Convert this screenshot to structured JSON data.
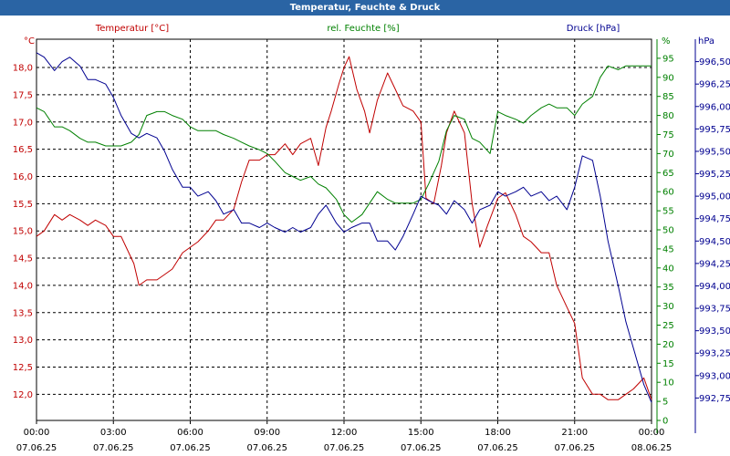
{
  "window": {
    "title": "Temperatur, Feuchte & Druck"
  },
  "colors": {
    "temperature": "#c00000",
    "humidity": "#008000",
    "pressure": "#000090",
    "grid": "#000000",
    "titlebar": "#2a64a4"
  },
  "chart_data": {
    "type": "line",
    "title": "Temperatur, Feuchte & Druck",
    "x_range_hours": [
      0,
      24
    ],
    "x_ticks": [
      {
        "h": 0,
        "time": "00:00",
        "date": "07.06.25"
      },
      {
        "h": 3,
        "time": "03:00",
        "date": "07.06.25"
      },
      {
        "h": 6,
        "time": "06:00",
        "date": "07.06.25"
      },
      {
        "h": 9,
        "time": "09:00",
        "date": "07.06.25"
      },
      {
        "h": 12,
        "time": "12:00",
        "date": "07.06.25"
      },
      {
        "h": 15,
        "time": "15:00",
        "date": "07.06.25"
      },
      {
        "h": 18,
        "time": "18:00",
        "date": "07.06.25"
      },
      {
        "h": 21,
        "time": "21:00",
        "date": "07.06.25"
      },
      {
        "h": 24,
        "time": "00:00",
        "date": "08.06.25"
      }
    ],
    "axes": {
      "temperature": {
        "label": "Temperatur [°C]",
        "unit": "°C",
        "ylim": [
          11.52,
          18.52
        ],
        "ticks": [
          "18,0",
          "17,5",
          "17,0",
          "16,5",
          "16,0",
          "15,5",
          "15,0",
          "14,5",
          "14,0",
          "13,5",
          "13,0",
          "12,5",
          "12,0"
        ]
      },
      "humidity": {
        "label": "rel. Feuchte [%]",
        "unit": "%",
        "ylim": [
          0,
          100
        ],
        "ticks": [
          "95",
          "90",
          "85",
          "80",
          "75",
          "70",
          "65",
          "60",
          "55",
          "50",
          "45",
          "40",
          "35",
          "30",
          "25",
          "20",
          "15",
          "10",
          "5",
          "0"
        ]
      },
      "pressure": {
        "label": "Druck [hPa]",
        "unit": "hPa",
        "ylim": [
          992.5,
          996.75
        ],
        "ticks": [
          "996,50",
          "996,25",
          "996,00",
          "995,75",
          "995,50",
          "995,25",
          "995,00",
          "994,75",
          "994,50",
          "994,25",
          "994,00",
          "993,75",
          "993,50",
          "993,25",
          "993,00",
          "992,75"
        ]
      }
    },
    "series": [
      {
        "name": "Temperatur",
        "axis": "temperature",
        "x": [
          0,
          0.3,
          0.7,
          1.0,
          1.3,
          1.7,
          2.0,
          2.3,
          2.7,
          3.0,
          3.3,
          3.5,
          3.8,
          4.0,
          4.3,
          4.7,
          5.0,
          5.3,
          5.7,
          6.0,
          6.3,
          6.7,
          7.0,
          7.3,
          7.7,
          8.0,
          8.3,
          8.7,
          9.0,
          9.3,
          9.7,
          10.0,
          10.3,
          10.7,
          11.0,
          11.3,
          11.5,
          11.8,
          12.0,
          12.2,
          12.5,
          12.8,
          13.0,
          13.3,
          13.7,
          14.0,
          14.3,
          14.7,
          15.0,
          15.2,
          15.5,
          15.8,
          16.0,
          16.3,
          16.7,
          17.0,
          17.3,
          17.6,
          18.0,
          18.3,
          18.7,
          19.0,
          19.3,
          19.7,
          20.0,
          20.3,
          20.7,
          21.0,
          21.3,
          21.7,
          22.0,
          22.3,
          22.7,
          23.0,
          23.3,
          23.7,
          24.0
        ],
        "values": [
          14.9,
          15.0,
          15.3,
          15.2,
          15.3,
          15.2,
          15.1,
          15.2,
          15.1,
          14.9,
          14.9,
          14.7,
          14.4,
          14.0,
          14.1,
          14.1,
          14.2,
          14.3,
          14.6,
          14.7,
          14.8,
          15.0,
          15.2,
          15.2,
          15.4,
          15.9,
          16.3,
          16.3,
          16.4,
          16.4,
          16.6,
          16.4,
          16.6,
          16.7,
          16.2,
          16.9,
          17.2,
          17.7,
          18.0,
          18.2,
          17.6,
          17.2,
          16.8,
          17.4,
          17.9,
          17.6,
          17.3,
          17.2,
          17.0,
          15.6,
          15.5,
          16.2,
          16.8,
          17.2,
          16.8,
          15.5,
          14.7,
          15.1,
          15.6,
          15.7,
          15.3,
          14.9,
          14.8,
          14.6,
          14.6,
          14.0,
          13.6,
          13.3,
          12.3,
          12.0,
          12.0,
          11.9,
          11.9,
          12.0,
          12.1,
          12.3,
          11.9
        ]
      },
      {
        "name": "rel. Feuchte",
        "axis": "humidity",
        "x": [
          0,
          0.3,
          0.7,
          1.0,
          1.3,
          1.7,
          2.0,
          2.3,
          2.7,
          3.0,
          3.3,
          3.7,
          4.0,
          4.3,
          4.7,
          5.0,
          5.3,
          5.7,
          6.0,
          6.3,
          6.7,
          7.0,
          7.3,
          7.7,
          8.0,
          8.3,
          8.7,
          9.0,
          9.3,
          9.7,
          10.0,
          10.3,
          10.7,
          11.0,
          11.3,
          11.7,
          12.0,
          12.3,
          12.7,
          13.0,
          13.3,
          13.7,
          14.0,
          14.3,
          14.7,
          15.0,
          15.3,
          15.7,
          16.0,
          16.3,
          16.7,
          17.0,
          17.3,
          17.7,
          18.0,
          18.3,
          18.7,
          19.0,
          19.3,
          19.7,
          20.0,
          20.3,
          20.7,
          21.0,
          21.3,
          21.7,
          22.0,
          22.3,
          22.7,
          23.0,
          23.3,
          23.7,
          24.0
        ],
        "values": [
          82,
          81,
          77,
          77,
          76,
          74,
          73,
          73,
          72,
          72,
          72,
          73,
          75,
          80,
          81,
          81,
          80,
          79,
          77,
          76,
          76,
          76,
          75,
          74,
          73,
          72,
          71,
          70,
          68,
          65,
          64,
          63,
          64,
          62,
          61,
          58,
          54,
          52,
          54,
          57,
          60,
          58,
          57,
          57,
          57,
          58,
          62,
          68,
          76,
          80,
          79,
          74,
          73,
          70,
          81,
          80,
          79,
          78,
          80,
          82,
          83,
          82,
          82,
          80,
          83,
          85,
          90,
          93,
          92,
          93,
          93,
          93,
          93
        ]
      },
      {
        "name": "Druck",
        "axis": "pressure",
        "x": [
          0,
          0.3,
          0.7,
          1.0,
          1.3,
          1.7,
          2.0,
          2.3,
          2.7,
          3.0,
          3.3,
          3.7,
          4.0,
          4.3,
          4.7,
          5.0,
          5.3,
          5.7,
          6.0,
          6.3,
          6.7,
          7.0,
          7.3,
          7.7,
          8.0,
          8.3,
          8.7,
          9.0,
          9.3,
          9.7,
          10.0,
          10.3,
          10.7,
          11.0,
          11.3,
          11.7,
          12.0,
          12.3,
          12.7,
          13.0,
          13.3,
          13.7,
          14.0,
          14.3,
          14.7,
          15.0,
          15.3,
          15.7,
          16.0,
          16.3,
          16.7,
          17.0,
          17.3,
          17.7,
          18.0,
          18.3,
          18.7,
          19.0,
          19.3,
          19.7,
          20.0,
          20.3,
          20.7,
          21.0,
          21.3,
          21.7,
          22.0,
          22.3,
          22.7,
          23.0,
          23.3,
          23.7,
          24.0
        ],
        "values": [
          996.6,
          996.55,
          996.4,
          996.5,
          996.55,
          996.45,
          996.3,
          996.3,
          996.25,
          996.1,
          995.9,
          995.7,
          995.65,
          995.7,
          995.65,
          995.5,
          995.3,
          995.1,
          995.1,
          995.0,
          995.05,
          994.95,
          994.8,
          994.85,
          994.7,
          994.7,
          994.65,
          994.7,
          994.65,
          994.6,
          994.65,
          994.6,
          994.65,
          994.8,
          994.9,
          994.7,
          994.6,
          994.65,
          994.7,
          994.7,
          994.5,
          994.5,
          994.4,
          994.55,
          994.8,
          995.0,
          994.95,
          994.9,
          994.8,
          994.95,
          994.85,
          994.7,
          994.85,
          994.9,
          995.05,
          995.0,
          995.05,
          995.1,
          995.0,
          995.05,
          994.95,
          995.0,
          994.85,
          995.1,
          995.45,
          995.4,
          995.0,
          994.5,
          994.0,
          993.6,
          993.3,
          992.9,
          992.7
        ]
      }
    ]
  }
}
